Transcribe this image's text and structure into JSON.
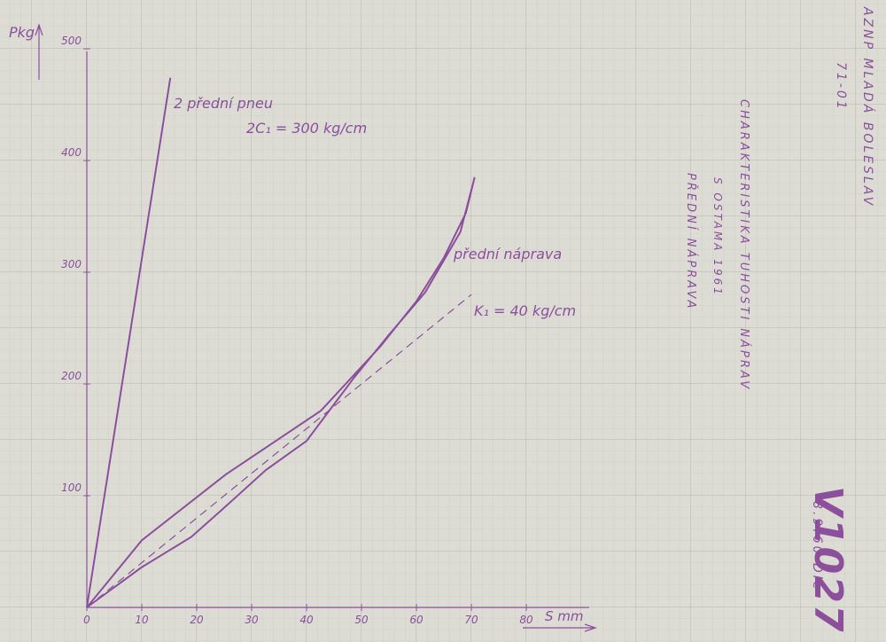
{
  "chart_data": {
    "type": "line",
    "ylabel": "Pkg",
    "xlabel": "S mm",
    "xlim": [
      0,
      90
    ],
    "ylim": [
      0,
      500
    ],
    "xticks": [
      0,
      10,
      20,
      30,
      40,
      50,
      60,
      70,
      80
    ],
    "yticks": [
      100,
      200,
      300,
      400,
      500
    ],
    "series": [
      {
        "name": "2 přední pneu",
        "color": "#8c4f9c",
        "style": "solid",
        "x": [
          0,
          15.2
        ],
        "values": [
          0,
          474
        ]
      },
      {
        "name": "přední náprava",
        "color": "#8c4f9c",
        "style": "solid",
        "x": [
          0,
          10,
          19,
          24.5,
          32.6,
          40,
          48.7,
          55,
          61.6,
          68,
          70.6,
          69,
          65,
          60,
          53.5,
          42.6,
          25.3,
          10,
          0
        ],
        "values": [
          0,
          36,
          63,
          87,
          123,
          149,
          206,
          244,
          282,
          336,
          385,
          353,
          313,
          274,
          234,
          176,
          119,
          60,
          0
        ]
      },
      {
        "name": "K₁ = 40 kg/cm",
        "color": "#8c4f9c",
        "style": "dashed",
        "x": [
          0,
          70
        ],
        "values": [
          0,
          280
        ]
      }
    ],
    "annotations": [
      "2C₁ = 300 kg/cm"
    ],
    "side_texts": [
      "AZNP MLADÁ BOLESLAV",
      "71-01",
      "CHARAKTERISTIKA TUHOSTI NÁPRAV",
      "S OSTAMA 1961",
      "PŘEDNÍ NÁPRAVA",
      "V1027",
      "8.9.60 Dle"
    ]
  }
}
